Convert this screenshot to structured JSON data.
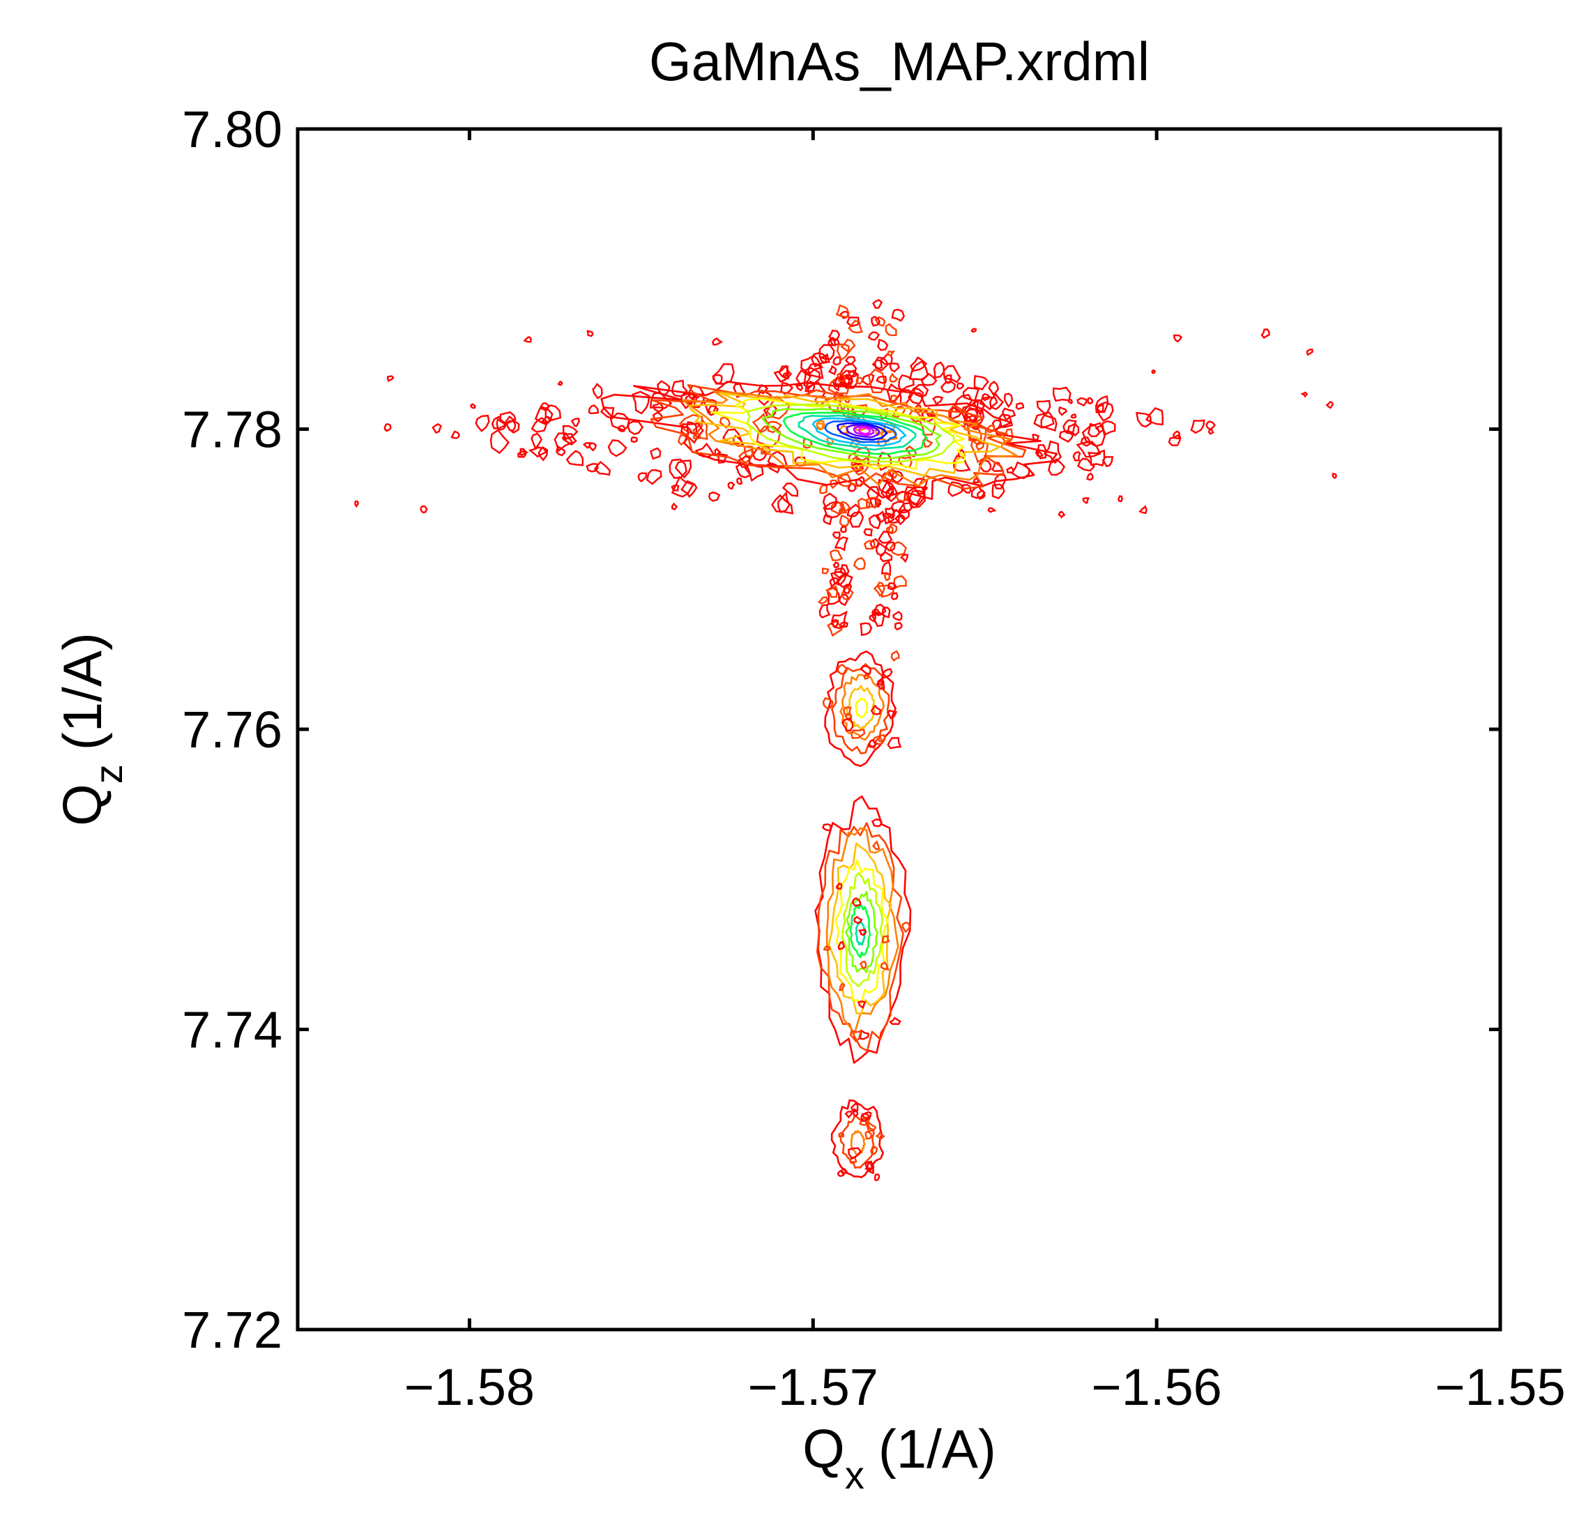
{
  "chart_data": {
    "type": "contour",
    "title": "GaMnAs_MAP.xrdml",
    "xlabel": {
      "main": "Q",
      "sub": "x",
      "unit": "(1/A)"
    },
    "ylabel": {
      "main": "Q",
      "sub": "z",
      "unit": "(1/A)"
    },
    "xlim": [
      -1.585,
      -1.55
    ],
    "ylim": [
      7.72,
      7.8
    ],
    "xticks": [
      {
        "value": -1.58,
        "label": "−1.58"
      },
      {
        "value": -1.57,
        "label": "−1.57"
      },
      {
        "value": -1.56,
        "label": "−1.56"
      },
      {
        "value": -1.55,
        "label": "−1.55"
      }
    ],
    "yticks": [
      {
        "value": 7.72,
        "label": "7.72"
      },
      {
        "value": 7.74,
        "label": "7.74"
      },
      {
        "value": 7.76,
        "label": "7.76"
      },
      {
        "value": 7.78,
        "label": "7.78"
      },
      {
        "value": 7.8,
        "label": "7.80"
      }
    ],
    "grid": false,
    "legend": "none",
    "colormap": "rainbow (red = low intensity, magenta = high intensity)",
    "level_colors": [
      "#ff0000",
      "#ff4000",
      "#ff8000",
      "#ffbf00",
      "#ffff00",
      "#bfff00",
      "#80ff00",
      "#00ff40",
      "#00e0a0",
      "#00c0ff",
      "#0060ff",
      "#0000ff",
      "#6000ff",
      "#c000ff",
      "#ff00ff"
    ],
    "features": [
      {
        "name": "substrate peak",
        "qx": -1.5685,
        "qz": 7.7799,
        "peak_level": 14,
        "wx": [
          0.012,
          0.009
        ],
        "wz": [
          0.0058,
          0.0068
        ],
        "streak_wz": [
          0.0105,
          0.006
        ],
        "streak_wx": 0.0012
      },
      {
        "name": "fringe",
        "qx": -1.5686,
        "qz": 7.7614,
        "peak_level": 4,
        "wx": 0.001,
        "wz": 0.0035
      },
      {
        "name": "layer peak",
        "qx": -1.5686,
        "qz": 7.7465,
        "peak_level": 8,
        "wx": 0.0013,
        "wz": 0.008
      },
      {
        "name": "fringe",
        "qx": -1.5687,
        "qz": 7.7325,
        "peak_level": 2,
        "wx": 0.0007,
        "wz": 0.0025
      }
    ]
  }
}
